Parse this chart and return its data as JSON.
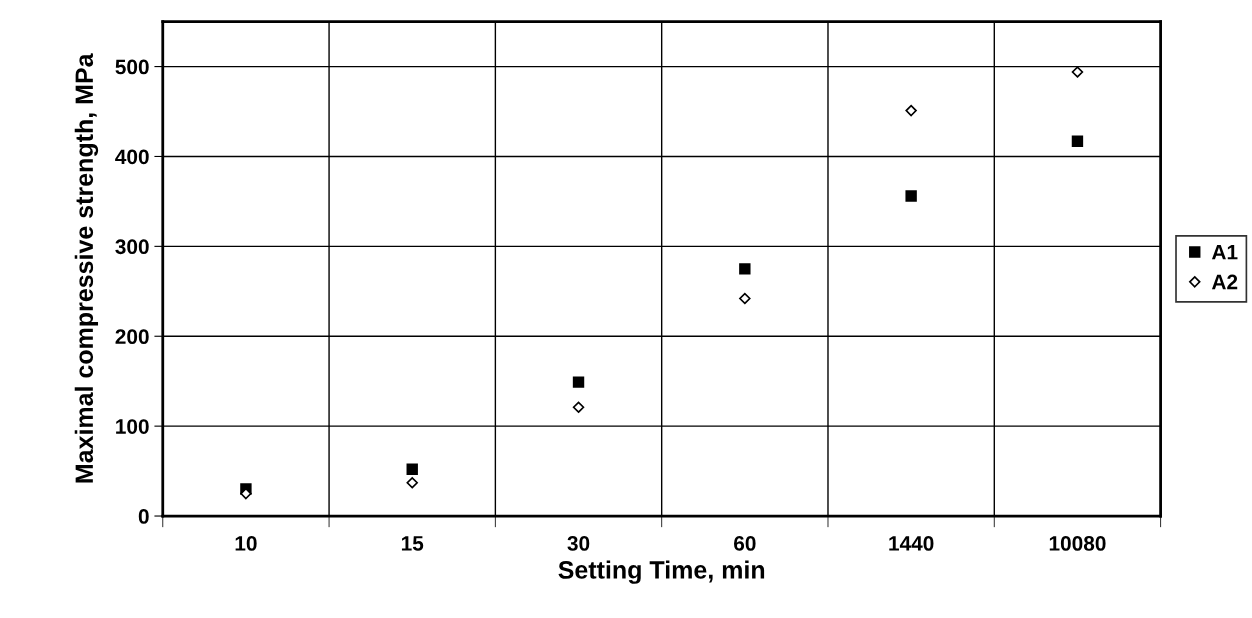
{
  "chart_data": {
    "type": "scatter",
    "xlabel": "Setting Time, min",
    "ylabel": "Maximal compressive strength, MPa",
    "categories": [
      "10",
      "15",
      "30",
      "60",
      "1440",
      "10080"
    ],
    "series": [
      {
        "name": "A1",
        "color": "#000000",
        "marker": "square",
        "values": [
          30,
          52,
          149,
          275,
          356,
          417
        ]
      },
      {
        "name": "A2",
        "color": "#000000",
        "marker": "diamond",
        "values": [
          25,
          37,
          121,
          242,
          451,
          494
        ]
      }
    ],
    "ylim": [
      0,
      550
    ],
    "yticks": [
      0,
      100,
      200,
      300,
      400,
      500
    ],
    "grid": true,
    "legend": "right"
  }
}
